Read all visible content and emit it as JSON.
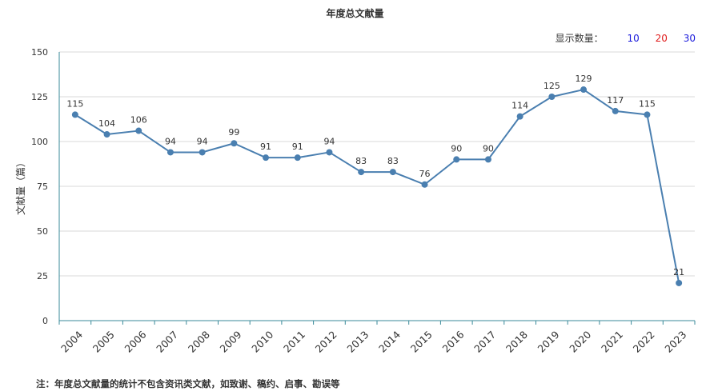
{
  "title": "年度总文献量",
  "count_selector": {
    "label": "显示数量：",
    "options": [
      "10",
      "20",
      "30"
    ]
  },
  "footnote": "注：年度总文献量的统计不包含资讯类文献，如致谢、稿约、启事、勘误等",
  "colors": {
    "line": "#4a7fb0",
    "axis": "#3a8a9a",
    "grid": "#d9d9d9"
  },
  "chart_data": {
    "type": "line",
    "title": "年度总文献量",
    "xlabel": "",
    "ylabel": "文献量（篇）",
    "ylim": [
      0,
      150
    ],
    "yticks": [
      0,
      25,
      50,
      75,
      100,
      125,
      150
    ],
    "grid": true,
    "categories": [
      "2004",
      "2005",
      "2006",
      "2007",
      "2008",
      "2009",
      "2010",
      "2011",
      "2012",
      "2013",
      "2014",
      "2015",
      "2016",
      "2017",
      "2018",
      "2019",
      "2020",
      "2021",
      "2022",
      "2023"
    ],
    "series": [
      {
        "values": [
          115,
          104,
          106,
          94,
          94,
          99,
          91,
          91,
          94,
          83,
          83,
          76,
          90,
          90,
          114,
          125,
          129,
          117,
          115,
          21
        ]
      }
    ]
  }
}
